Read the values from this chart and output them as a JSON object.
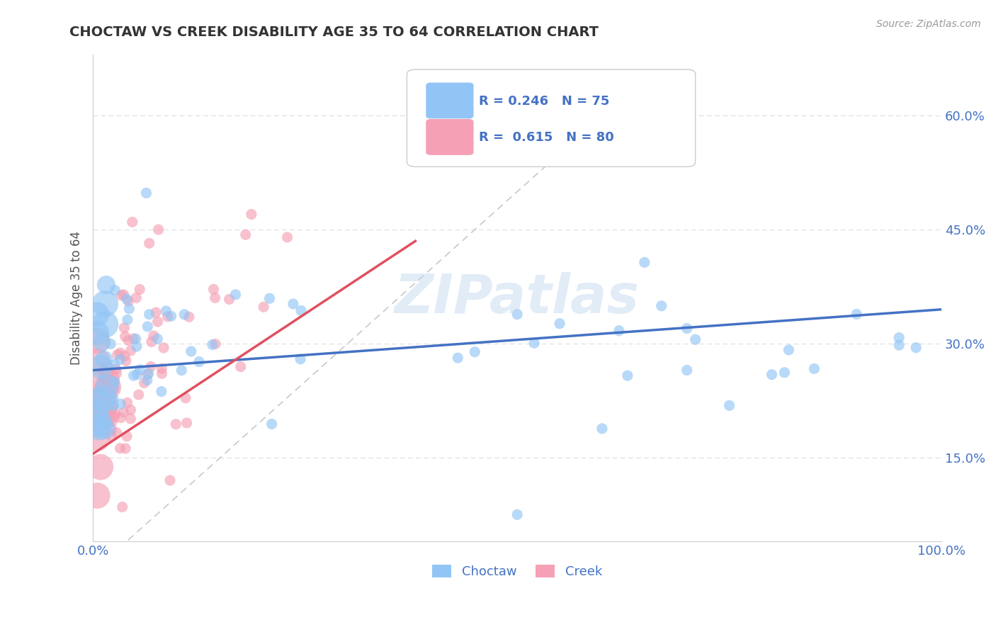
{
  "title": "CHOCTAW VS CREEK DISABILITY AGE 35 TO 64 CORRELATION CHART",
  "source_text": "Source: ZipAtlas.com",
  "ylabel": "Disability Age 35 to 64",
  "xlim": [
    0.0,
    1.0
  ],
  "ylim": [
    0.04,
    0.68
  ],
  "ytick_positions": [
    0.15,
    0.3,
    0.45,
    0.6
  ],
  "ytick_labels": [
    "15.0%",
    "30.0%",
    "45.0%",
    "60.0%"
  ],
  "choctaw_color": "#92C5F5",
  "creek_color": "#F5A0B5",
  "choctaw_line_color": "#4472C4",
  "creek_line_color": "#E05060",
  "ref_line_color": "#C8C8C8",
  "background_color": "#FFFFFF",
  "grid_color": "#DDDDDD",
  "watermark": "ZIPatlas",
  "title_color": "#333333",
  "axis_label_color": "#555555",
  "tick_label_color": "#4472C4",
  "choctaw_R": 0.246,
  "choctaw_N": 75,
  "creek_R": 0.615,
  "creek_N": 80,
  "choctaw_line_x0": 0.0,
  "choctaw_line_y0": 0.265,
  "choctaw_line_x1": 1.0,
  "choctaw_line_y1": 0.345,
  "creek_line_x0": 0.0,
  "creek_line_y0": 0.155,
  "creek_line_x1": 0.38,
  "creek_line_y1": 0.435
}
